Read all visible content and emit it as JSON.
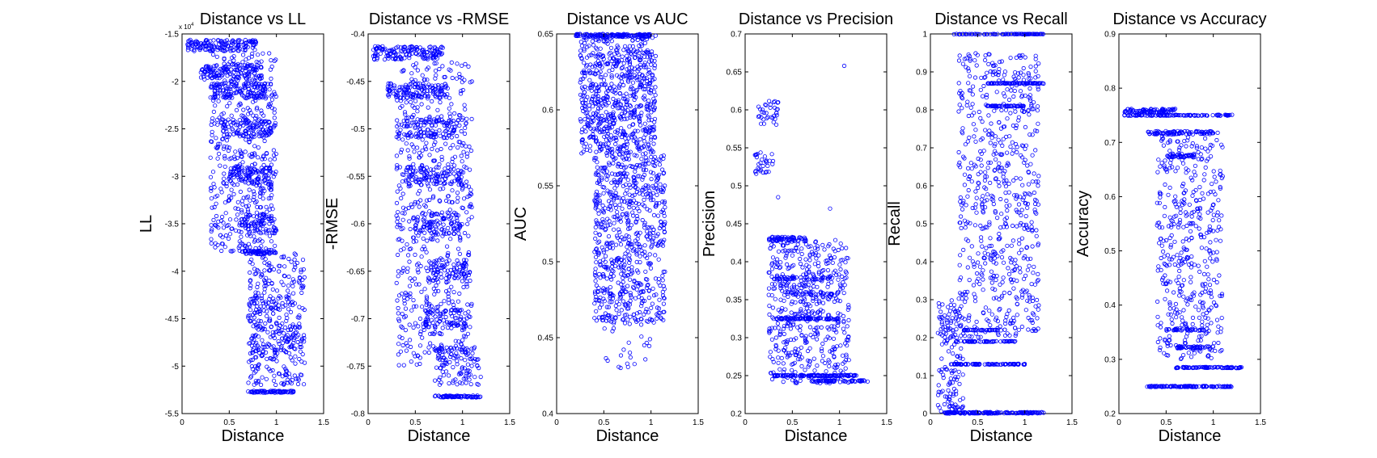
{
  "theme": {
    "marker_color": "#0000ff",
    "axis_color": "#000000"
  },
  "chart_data": [
    {
      "type": "scatter",
      "title": "Distance vs LL",
      "xlabel": "Distance",
      "ylabel": "LL",
      "xlim": [
        0,
        1.5
      ],
      "ylim": [
        -5.5,
        -1.5
      ],
      "xticks": [
        "0",
        "0.5",
        "1",
        "1.5"
      ],
      "yticks": [
        "-5.5",
        "-5",
        "-4.5",
        "-4",
        "-3.5",
        "-3",
        "-2.5",
        "-2",
        "-1.5"
      ],
      "y_multiplier": "x 10",
      "y_multiplier_exp": "4",
      "series": [
        {
          "bands": [
            {
              "xmin": 0.05,
              "xmax": 0.8,
              "y": -1.62,
              "spread": 0.06,
              "n": 150
            },
            {
              "xmin": 0.2,
              "xmax": 0.85,
              "y": -1.9,
              "spread": 0.08,
              "n": 120
            },
            {
              "xmin": 0.3,
              "xmax": 0.9,
              "y": -2.1,
              "spread": 0.08,
              "n": 110
            },
            {
              "xmin": 0.4,
              "xmax": 0.95,
              "y": -2.5,
              "spread": 0.1,
              "n": 100
            },
            {
              "xmin": 0.5,
              "xmax": 0.95,
              "y": -3.0,
              "spread": 0.1,
              "n": 90
            },
            {
              "xmin": 0.6,
              "xmax": 1.0,
              "y": -3.5,
              "spread": 0.1,
              "n": 80
            },
            {
              "xmin": 0.6,
              "xmax": 1.0,
              "y": -3.8,
              "spread": 0.02,
              "n": 60
            },
            {
              "xmin": 0.7,
              "xmax": 1.2,
              "y": -4.6,
              "spread": 0.35,
              "n": 120
            },
            {
              "xmin": 0.7,
              "xmax": 1.2,
              "y": -5.27,
              "spread": 0.01,
              "n": 70
            }
          ],
          "clouds": [
            {
              "xmin": 0.3,
              "xmax": 1.0,
              "ymin": -3.8,
              "ymax": -1.7,
              "n": 500
            },
            {
              "xmin": 0.7,
              "xmax": 1.3,
              "ymin": -5.2,
              "ymax": -3.8,
              "n": 300
            }
          ]
        }
      ]
    },
    {
      "type": "scatter",
      "title": "Distance vs -RMSE",
      "xlabel": "Distance",
      "ylabel": "-RMSE",
      "xlim": [
        0,
        1.5
      ],
      "ylim": [
        -0.8,
        -0.4
      ],
      "xticks": [
        "0",
        "0.5",
        "1",
        "1.5"
      ],
      "yticks": [
        "-0.8",
        "-0.75",
        "-0.7",
        "-0.65",
        "-0.6",
        "-0.55",
        "-0.5",
        "-0.45",
        "-0.4"
      ],
      "series": [
        {
          "bands": [
            {
              "xmin": 0.05,
              "xmax": 0.8,
              "y": -0.42,
              "spread": 0.007,
              "n": 150
            },
            {
              "xmin": 0.2,
              "xmax": 0.85,
              "y": -0.46,
              "spread": 0.008,
              "n": 120
            },
            {
              "xmin": 0.3,
              "xmax": 0.95,
              "y": -0.5,
              "spread": 0.01,
              "n": 110
            },
            {
              "xmin": 0.4,
              "xmax": 1.0,
              "y": -0.55,
              "spread": 0.01,
              "n": 100
            },
            {
              "xmin": 0.5,
              "xmax": 1.0,
              "y": -0.6,
              "spread": 0.012,
              "n": 90
            },
            {
              "xmin": 0.6,
              "xmax": 1.05,
              "y": -0.65,
              "spread": 0.012,
              "n": 80
            },
            {
              "xmin": 0.6,
              "xmax": 1.05,
              "y": -0.7,
              "spread": 0.01,
              "n": 80
            },
            {
              "xmin": 0.7,
              "xmax": 1.2,
              "y": -0.75,
              "spread": 0.02,
              "n": 100
            },
            {
              "xmin": 0.7,
              "xmax": 1.2,
              "y": -0.782,
              "spread": 0.001,
              "n": 70
            }
          ],
          "clouds": [
            {
              "xmin": 0.3,
              "xmax": 1.1,
              "ymin": -0.75,
              "ymax": -0.43,
              "n": 600
            }
          ]
        }
      ]
    },
    {
      "type": "scatter",
      "title": "Distance vs AUC",
      "xlabel": "Distance",
      "ylabel": "AUC",
      "xlim": [
        0,
        1.5
      ],
      "ylim": [
        0.4,
        0.65
      ],
      "xticks": [
        "0",
        "0.5",
        "1",
        "1.5"
      ],
      "yticks": [
        "0.4",
        "0.45",
        "0.5",
        "0.55",
        "0.6",
        "0.65"
      ],
      "series": [
        {
          "bands": [
            {
              "xmin": 0.2,
              "xmax": 1.0,
              "y": 0.649,
              "spread": 0.001,
              "n": 120
            }
          ],
          "clouds": [
            {
              "xmin": 0.25,
              "xmax": 1.05,
              "ymin": 0.57,
              "ymax": 0.65,
              "n": 700
            },
            {
              "xmin": 0.4,
              "xmax": 1.15,
              "ymin": 0.46,
              "ymax": 0.57,
              "n": 700
            },
            {
              "xmin": 0.5,
              "xmax": 1.0,
              "ymin": 0.43,
              "ymax": 0.46,
              "n": 25
            }
          ]
        }
      ]
    },
    {
      "type": "scatter",
      "title": "Distance vs Precision",
      "xlabel": "Distance",
      "ylabel": "Precision",
      "xlim": [
        0,
        1.5
      ],
      "ylim": [
        0.2,
        0.7
      ],
      "xticks": [
        "0",
        "0.5",
        "1",
        "1.5"
      ],
      "yticks": [
        "0.2",
        "0.25",
        "0.3",
        "0.35",
        "0.4",
        "0.45",
        "0.5",
        "0.55",
        "0.6",
        "0.65",
        "0.7"
      ],
      "series": [
        {
          "bands": [
            {
              "xmin": 0.25,
              "xmax": 0.65,
              "y": 0.43,
              "spread": 0.003,
              "n": 60
            },
            {
              "xmin": 0.3,
              "xmax": 0.9,
              "y": 0.378,
              "spread": 0.002,
              "n": 40
            },
            {
              "xmin": 0.4,
              "xmax": 1.0,
              "y": 0.358,
              "spread": 0.002,
              "n": 40
            },
            {
              "xmin": 0.3,
              "xmax": 1.0,
              "y": 0.325,
              "spread": 0.001,
              "n": 80
            },
            {
              "xmin": 0.3,
              "xmax": 1.2,
              "y": 0.25,
              "spread": 0.001,
              "n": 120
            },
            {
              "xmin": 0.7,
              "xmax": 1.3,
              "y": 0.243,
              "spread": 0.001,
              "n": 60
            }
          ],
          "clouds": [
            {
              "xmin": 0.1,
              "xmax": 0.35,
              "ymin": 0.58,
              "ymax": 0.615,
              "n": 35
            },
            {
              "xmin": 0.1,
              "xmax": 0.3,
              "ymin": 0.515,
              "ymax": 0.545,
              "n": 30
            },
            {
              "xmin": 0.25,
              "xmax": 1.1,
              "ymin": 0.24,
              "ymax": 0.43,
              "n": 500
            }
          ],
          "points": [
            [
              1.05,
              0.658
            ],
            [
              0.9,
              0.47
            ],
            [
              0.35,
              0.485
            ]
          ]
        }
      ]
    },
    {
      "type": "scatter",
      "title": "Distance vs Recall",
      "xlabel": "Distance",
      "ylabel": "Recall",
      "xlim": [
        0,
        1.5
      ],
      "ylim": [
        0,
        1
      ],
      "xticks": [
        "0",
        "0.5",
        "1",
        "1.5"
      ],
      "yticks": [
        "0",
        "0.1",
        "0.2",
        "0.3",
        "0.4",
        "0.5",
        "0.6",
        "0.7",
        "0.8",
        "0.9",
        "1"
      ],
      "series": [
        {
          "bands": [
            {
              "xmin": 0.25,
              "xmax": 1.2,
              "y": 1.0,
              "spread": 0.001,
              "n": 150
            },
            {
              "xmin": 0.6,
              "xmax": 1.2,
              "y": 0.87,
              "spread": 0.001,
              "n": 80
            },
            {
              "xmin": 0.6,
              "xmax": 1.0,
              "y": 0.81,
              "spread": 0.001,
              "n": 60
            },
            {
              "xmin": 0.35,
              "xmax": 0.8,
              "y": 0.22,
              "spread": 0.001,
              "n": 40
            },
            {
              "xmin": 0.35,
              "xmax": 0.9,
              "y": 0.19,
              "spread": 0.001,
              "n": 50
            },
            {
              "xmin": 0.2,
              "xmax": 1.0,
              "y": 0.13,
              "spread": 0.001,
              "n": 90
            },
            {
              "xmin": 0.15,
              "xmax": 1.2,
              "y": 0.002,
              "spread": 0.002,
              "n": 150
            }
          ],
          "clouds": [
            {
              "xmin": 0.08,
              "xmax": 0.35,
              "ymin": 0.0,
              "ymax": 0.3,
              "n": 150
            },
            {
              "xmin": 0.3,
              "xmax": 1.15,
              "ymin": 0.2,
              "ymax": 0.95,
              "n": 650
            }
          ]
        }
      ]
    },
    {
      "type": "scatter",
      "title": "Distance vs Accuracy",
      "xlabel": "Distance",
      "ylabel": "Accuracy",
      "xlim": [
        0,
        1.5
      ],
      "ylim": [
        0.2,
        0.9
      ],
      "xticks": [
        "0",
        "0.5",
        "1",
        "1.5"
      ],
      "yticks": [
        "0.2",
        "0.3",
        "0.4",
        "0.5",
        "0.6",
        "0.7",
        "0.8",
        "0.9"
      ],
      "series": [
        {
          "bands": [
            {
              "xmin": 0.05,
              "xmax": 0.6,
              "y": 0.758,
              "spread": 0.004,
              "n": 80
            },
            {
              "xmin": 0.05,
              "xmax": 1.2,
              "y": 0.75,
              "spread": 0.001,
              "n": 100
            },
            {
              "xmin": 0.3,
              "xmax": 1.0,
              "y": 0.718,
              "spread": 0.003,
              "n": 80
            },
            {
              "xmin": 0.5,
              "xmax": 0.8,
              "y": 0.675,
              "spread": 0.003,
              "n": 40
            },
            {
              "xmin": 0.5,
              "xmax": 0.9,
              "y": 0.355,
              "spread": 0.002,
              "n": 40
            },
            {
              "xmin": 0.6,
              "xmax": 1.0,
              "y": 0.322,
              "spread": 0.002,
              "n": 40
            },
            {
              "xmin": 0.6,
              "xmax": 1.3,
              "y": 0.285,
              "spread": 0.001,
              "n": 80
            },
            {
              "xmin": 0.3,
              "xmax": 1.2,
              "y": 0.25,
              "spread": 0.001,
              "n": 120
            }
          ],
          "clouds": [
            {
              "xmin": 0.4,
              "xmax": 1.1,
              "ymin": 0.3,
              "ymax": 0.72,
              "n": 450
            }
          ]
        }
      ]
    }
  ]
}
